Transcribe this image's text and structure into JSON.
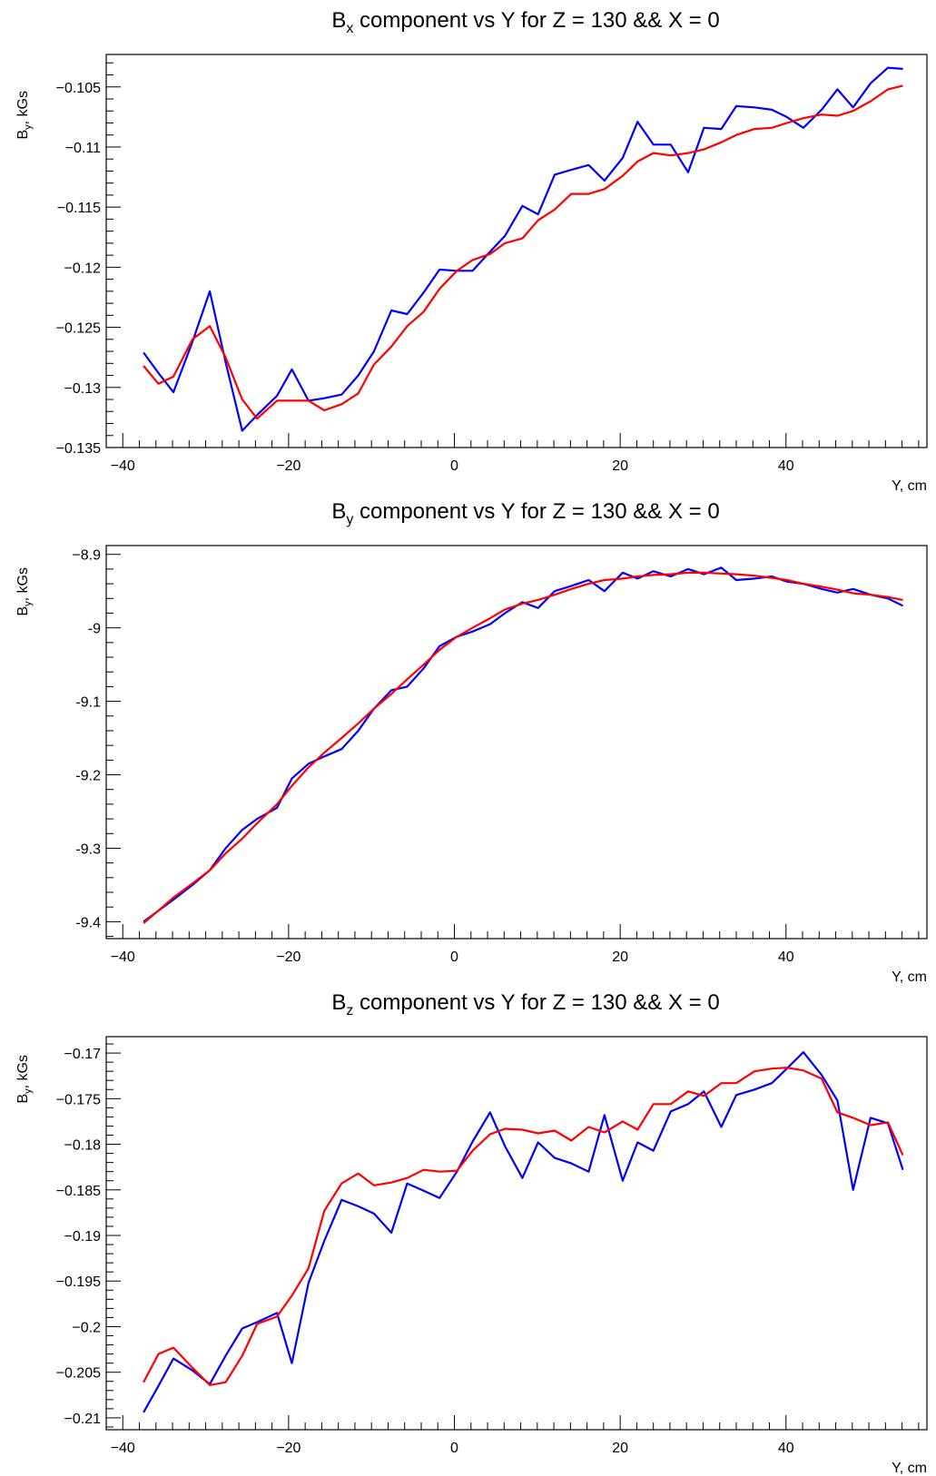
{
  "chart_data": [
    {
      "type": "line",
      "title_main": "B",
      "title_sub": "x",
      "title_rest": " component vs Y for Z = 130 && X = 0",
      "ylabel_main": "B",
      "ylabel_sub": "y",
      "ylabel_rest": ", kGs",
      "xlabel": "Y, cm",
      "xlim": [
        -42,
        57
      ],
      "ylim": [
        -0.135,
        -0.1023
      ],
      "xticks": [
        -40,
        -20,
        0,
        20,
        40
      ],
      "xtick_labels": [
        "−40",
        "−20",
        "0",
        "20",
        "40"
      ],
      "yticks": [
        -0.135,
        -0.13,
        -0.125,
        -0.12,
        -0.115,
        -0.11,
        -0.105
      ],
      "ytick_labels": [
        "−0.135",
        "−0.13",
        "−0.125",
        "−0.12",
        "−0.115",
        "−0.11",
        "−0.105"
      ],
      "x": [
        -37.5,
        -35.7,
        -33.9,
        -31.6,
        -29.5,
        -27.6,
        -25.6,
        -23.8,
        -21.4,
        -19.6,
        -17.6,
        -15.7,
        -13.6,
        -11.6,
        -9.7,
        -7.6,
        -5.7,
        -3.7,
        -1.8,
        0.3,
        2.2,
        4.3,
        6.1,
        8.2,
        10.1,
        12.1,
        14.1,
        16.2,
        18.1,
        20.3,
        22.1,
        24.0,
        26.1,
        28.2,
        30.1,
        32.2,
        34.0,
        36.2,
        38.3,
        40.1,
        42.1,
        44.3,
        46.2,
        48.1,
        50.2,
        52.3,
        54.1
      ],
      "series": [
        {
          "color": "#0000ff",
          "values": [
            -0.1271,
            -0.1288,
            -0.1304,
            -0.1262,
            -0.122,
            -0.1279,
            -0.1336,
            -0.1323,
            -0.1307,
            -0.1285,
            -0.1311,
            -0.1309,
            -0.1306,
            -0.129,
            -0.127,
            -0.1236,
            -0.1239,
            -0.1221,
            -0.1202,
            -0.1203,
            -0.1203,
            -0.1187,
            -0.1174,
            -0.1149,
            -0.1156,
            -0.1123,
            -0.1119,
            -0.1115,
            -0.1128,
            -0.1109,
            -0.1079,
            -0.1098,
            -0.1098,
            -0.1121,
            -0.1084,
            -0.1085,
            -0.1066,
            -0.1067,
            -0.1069,
            -0.1075,
            -0.1084,
            -0.1069,
            -0.1052,
            -0.1067,
            -0.1047,
            -0.1034,
            -0.1035
          ]
        },
        {
          "color": "#ff0000",
          "values": [
            -0.1282,
            -0.1297,
            -0.1291,
            -0.126,
            -0.1249,
            -0.1275,
            -0.131,
            -0.1326,
            -0.1311,
            -0.1311,
            -0.1311,
            -0.1319,
            -0.1314,
            -0.1305,
            -0.1281,
            -0.1266,
            -0.1249,
            -0.1237,
            -0.1218,
            -0.1203,
            -0.1194,
            -0.1189,
            -0.118,
            -0.1176,
            -0.1161,
            -0.1152,
            -0.1139,
            -0.1139,
            -0.1135,
            -0.1124,
            -0.1112,
            -0.1105,
            -0.1107,
            -0.1105,
            -0.1102,
            -0.1096,
            -0.109,
            -0.1085,
            -0.1084,
            -0.108,
            -0.1076,
            -0.1073,
            -0.1074,
            -0.107,
            -0.1062,
            -0.1052,
            -0.1049
          ]
        }
      ]
    },
    {
      "type": "line",
      "title_main": "B",
      "title_sub": "y",
      "title_rest": " component vs Y for Z = 130 && X = 0",
      "ylabel_main": "B",
      "ylabel_sub": "y",
      "ylabel_rest": ", kGs",
      "xlabel": "Y, cm",
      "xlim": [
        -42,
        57
      ],
      "ylim": [
        -9.423,
        -8.888
      ],
      "xticks": [
        -40,
        -20,
        0,
        20,
        40
      ],
      "xtick_labels": [
        "−40",
        "−20",
        "0",
        "20",
        "40"
      ],
      "yticks": [
        -9.4,
        -9.3,
        -9.2,
        -9.1,
        -9.0,
        -8.9
      ],
      "ytick_labels": [
        "-9.4",
        "-9.3",
        "-9.2",
        "-9.1",
        "-9",
        "−8.9"
      ],
      "x": [
        -37.5,
        -35.7,
        -33.9,
        -31.6,
        -29.5,
        -27.6,
        -25.6,
        -23.8,
        -21.4,
        -19.6,
        -17.6,
        -15.7,
        -13.6,
        -11.6,
        -9.7,
        -7.6,
        -5.7,
        -3.7,
        -1.8,
        0.3,
        2.2,
        4.3,
        6.1,
        8.2,
        10.1,
        12.1,
        14.1,
        16.2,
        18.1,
        20.3,
        22.1,
        24.0,
        26.1,
        28.2,
        30.1,
        32.2,
        34.0,
        36.2,
        38.3,
        40.1,
        42.1,
        44.3,
        46.2,
        48.1,
        50.2,
        52.3,
        54.1
      ],
      "series": [
        {
          "color": "#0000ff",
          "values": [
            -9.4,
            -9.385,
            -9.37,
            -9.35,
            -9.33,
            -9.3,
            -9.275,
            -9.26,
            -9.245,
            -9.205,
            -9.185,
            -9.175,
            -9.165,
            -9.14,
            -9.11,
            -9.085,
            -9.08,
            -9.055,
            -9.025,
            -9.012,
            -9.005,
            -8.995,
            -8.98,
            -8.965,
            -8.973,
            -8.95,
            -8.943,
            -8.935,
            -8.95,
            -8.925,
            -8.933,
            -8.923,
            -8.93,
            -8.92,
            -8.927,
            -8.918,
            -8.935,
            -8.933,
            -8.93,
            -8.937,
            -8.94,
            -8.947,
            -8.952,
            -8.947,
            -8.955,
            -8.96,
            -8.97
          ]
        },
        {
          "color": "#ff0000",
          "values": [
            -9.402,
            -9.385,
            -9.367,
            -9.348,
            -9.33,
            -9.307,
            -9.287,
            -9.266,
            -9.24,
            -9.215,
            -9.19,
            -9.17,
            -9.15,
            -9.13,
            -9.11,
            -9.09,
            -9.07,
            -9.05,
            -9.03,
            -9.012,
            -9.0,
            -8.987,
            -8.975,
            -8.967,
            -8.962,
            -8.955,
            -8.947,
            -8.94,
            -8.935,
            -8.933,
            -8.93,
            -8.928,
            -8.927,
            -8.925,
            -8.925,
            -8.926,
            -8.927,
            -8.929,
            -8.932,
            -8.935,
            -8.94,
            -8.944,
            -8.948,
            -8.953,
            -8.955,
            -8.958,
            -8.962
          ]
        }
      ]
    },
    {
      "type": "line",
      "title_main": "B",
      "title_sub": "z",
      "title_rest": " component vs Y for Z = 130 && X = 0",
      "ylabel_main": "B",
      "ylabel_sub": "y",
      "ylabel_rest": ", kGs",
      "xlabel": "Y, cm",
      "xlim": [
        -42,
        57
      ],
      "ylim": [
        -0.2113,
        -0.1682
      ],
      "xticks": [
        -40,
        -20,
        0,
        20,
        40
      ],
      "xtick_labels": [
        "−40",
        "−20",
        "0",
        "20",
        "40"
      ],
      "yticks": [
        -0.21,
        -0.205,
        -0.2,
        -0.195,
        -0.19,
        -0.185,
        -0.18,
        -0.175,
        -0.17
      ],
      "ytick_labels": [
        "−0.21",
        "−0.205",
        "−0.2",
        "−0.195",
        "−0.19",
        "−0.185",
        "−0.18",
        "−0.175",
        "−0.17"
      ],
      "x": [
        -37.5,
        -35.7,
        -33.9,
        -31.6,
        -29.5,
        -27.6,
        -25.6,
        -23.8,
        -21.4,
        -19.6,
        -17.6,
        -15.7,
        -13.6,
        -11.6,
        -9.7,
        -7.6,
        -5.7,
        -3.7,
        -1.8,
        0.3,
        2.2,
        4.3,
        6.1,
        8.2,
        10.1,
        12.1,
        14.1,
        16.2,
        18.1,
        20.3,
        22.1,
        24.0,
        26.1,
        28.2,
        30.1,
        32.2,
        34.0,
        36.2,
        38.3,
        40.1,
        42.1,
        44.3,
        46.2,
        48.1,
        50.2,
        52.3,
        54.1
      ],
      "series": [
        {
          "color": "#0000ff",
          "values": [
            -0.2094,
            -0.2065,
            -0.2035,
            -0.2048,
            -0.2063,
            -0.2032,
            -0.2002,
            -0.1995,
            -0.1985,
            -0.204,
            -0.1952,
            -0.1906,
            -0.1861,
            -0.1868,
            -0.1876,
            -0.1897,
            -0.1843,
            -0.1851,
            -0.1859,
            -0.183,
            -0.1797,
            -0.1765,
            -0.1802,
            -0.1837,
            -0.1798,
            -0.1815,
            -0.1821,
            -0.183,
            -0.1768,
            -0.184,
            -0.1798,
            -0.1807,
            -0.1764,
            -0.1756,
            -0.1742,
            -0.1781,
            -0.1746,
            -0.174,
            -0.1733,
            -0.1717,
            -0.1699,
            -0.1724,
            -0.1752,
            -0.185,
            -0.1771,
            -0.1777,
            -0.1828
          ]
        },
        {
          "color": "#ff0000",
          "values": [
            -0.2061,
            -0.203,
            -0.2023,
            -0.2045,
            -0.2064,
            -0.2061,
            -0.2032,
            -0.1997,
            -0.1989,
            -0.1966,
            -0.1936,
            -0.1873,
            -0.1843,
            -0.1832,
            -0.1845,
            -0.1842,
            -0.1837,
            -0.1828,
            -0.183,
            -0.1829,
            -0.1807,
            -0.1789,
            -0.1783,
            -0.1784,
            -0.1788,
            -0.1785,
            -0.1796,
            -0.1781,
            -0.1787,
            -0.1775,
            -0.1784,
            -0.1756,
            -0.1756,
            -0.1742,
            -0.1747,
            -0.1733,
            -0.1733,
            -0.172,
            -0.1717,
            -0.1716,
            -0.1719,
            -0.1728,
            -0.1765,
            -0.1771,
            -0.1779,
            -0.1776,
            -0.1812
          ]
        }
      ]
    }
  ]
}
